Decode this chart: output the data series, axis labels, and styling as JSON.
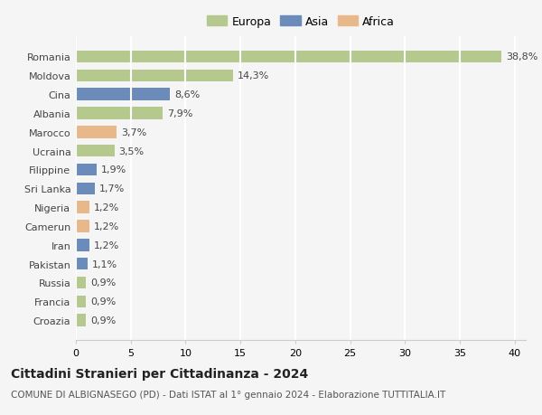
{
  "categories": [
    "Romania",
    "Moldova",
    "Cina",
    "Albania",
    "Marocco",
    "Ucraina",
    "Filippine",
    "Sri Lanka",
    "Nigeria",
    "Camerun",
    "Iran",
    "Pakistan",
    "Russia",
    "Francia",
    "Croazia"
  ],
  "values": [
    38.8,
    14.3,
    8.6,
    7.9,
    3.7,
    3.5,
    1.9,
    1.7,
    1.2,
    1.2,
    1.2,
    1.1,
    0.9,
    0.9,
    0.9
  ],
  "labels": [
    "38,8%",
    "14,3%",
    "8,6%",
    "7,9%",
    "3,7%",
    "3,5%",
    "1,9%",
    "1,7%",
    "1,2%",
    "1,2%",
    "1,2%",
    "1,1%",
    "0,9%",
    "0,9%",
    "0,9%"
  ],
  "colors": [
    "#b5c98e",
    "#b5c98e",
    "#6b8cba",
    "#b5c98e",
    "#e8b88a",
    "#b5c98e",
    "#6b8cba",
    "#6b8cba",
    "#e8b88a",
    "#e8b88a",
    "#6b8cba",
    "#6b8cba",
    "#b5c98e",
    "#b5c98e",
    "#b5c98e"
  ],
  "legend_labels": [
    "Europa",
    "Asia",
    "Africa"
  ],
  "legend_colors": [
    "#b5c98e",
    "#6b8cba",
    "#e8b88a"
  ],
  "title": "Cittadini Stranieri per Cittadinanza - 2024",
  "subtitle": "COMUNE DI ALBIGNASEGO (PD) - Dati ISTAT al 1° gennaio 2024 - Elaborazione TUTTITALIA.IT",
  "xlim": [
    0,
    41
  ],
  "xticks": [
    0,
    5,
    10,
    15,
    20,
    25,
    30,
    35,
    40
  ],
  "background_color": "#f5f5f5",
  "grid_color": "#ffffff",
  "bar_height": 0.65,
  "title_fontsize": 10,
  "subtitle_fontsize": 7.5,
  "tick_fontsize": 8,
  "label_fontsize": 8
}
